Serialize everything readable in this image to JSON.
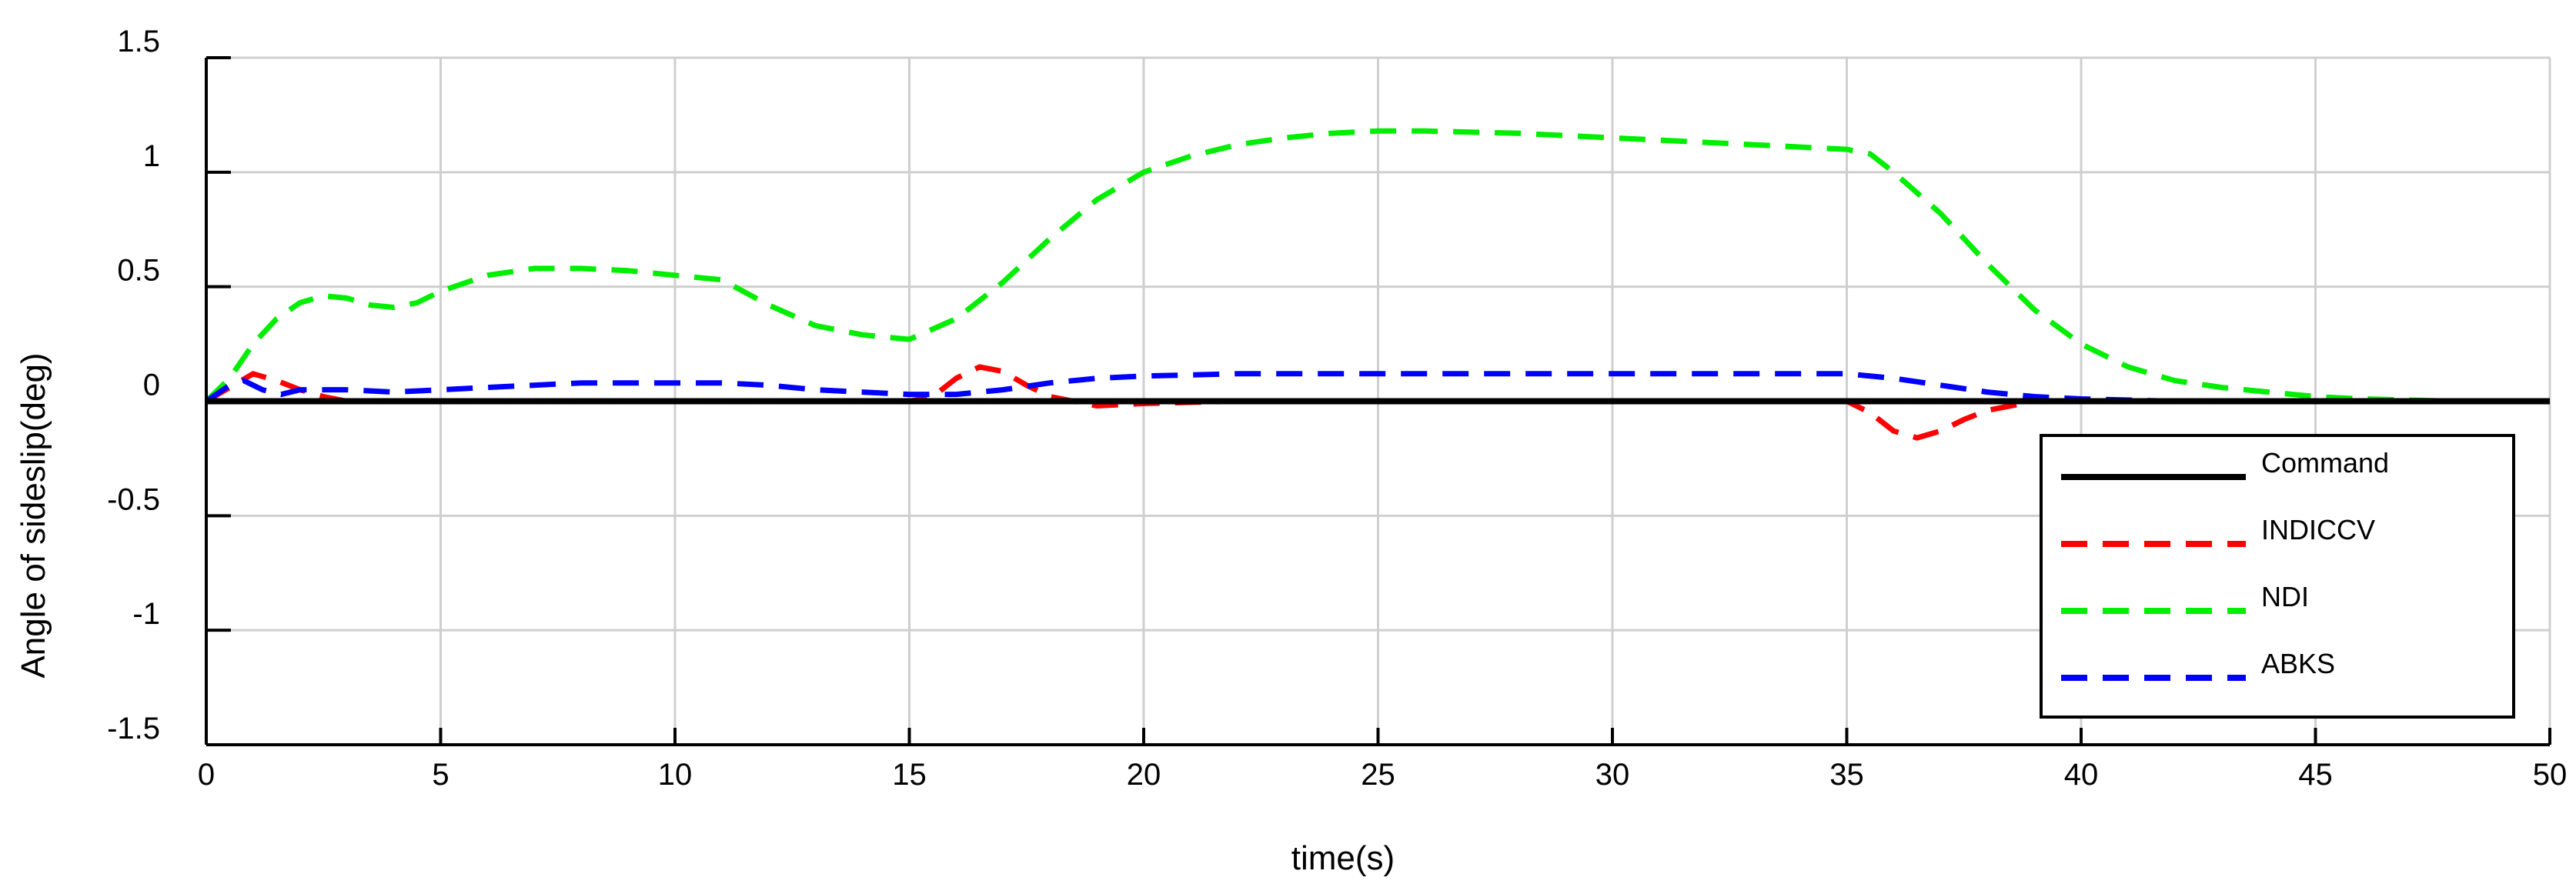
{
  "chart_data": {
    "type": "line",
    "title": "",
    "xlabel": "time(s)",
    "ylabel": "Angle of sideslip(deg)",
    "xlim": [
      0,
      50
    ],
    "ylim": [
      -1.5,
      1.5
    ],
    "xticks": [
      0,
      5,
      10,
      15,
      20,
      25,
      30,
      35,
      40,
      45,
      50
    ],
    "yticks": [
      -1.5,
      -1,
      -0.5,
      0,
      0.5,
      1,
      1.5
    ],
    "xtick_labels": [
      "0",
      "5",
      "10",
      "15",
      "20",
      "25",
      "30",
      "35",
      "40",
      "45",
      "50"
    ],
    "ytick_labels": [
      "-1.5",
      "-1",
      "-0.5",
      "0",
      "0.5",
      "1",
      "1.5"
    ],
    "grid": true,
    "legend_position": "bottom-right",
    "series": [
      {
        "name": "Command",
        "color": "#000000",
        "style": "solid",
        "x": [
          0,
          50
        ],
        "y": [
          0,
          0
        ]
      },
      {
        "name": "INDICCV",
        "color": "#ff0000",
        "style": "dashed",
        "x": [
          0,
          0.5,
          1,
          1.5,
          2,
          2.5,
          3,
          4,
          5,
          8,
          10,
          12,
          14,
          15,
          15.5,
          16,
          16.5,
          17,
          17.5,
          18,
          19,
          20,
          22,
          25,
          30,
          35,
          35.5,
          36,
          36.5,
          37,
          37.5,
          38,
          39,
          40,
          45,
          50
        ],
        "y": [
          0,
          0.06,
          0.12,
          0.09,
          0.05,
          0.02,
          0,
          0,
          0,
          0,
          0,
          0,
          0,
          0,
          0.02,
          0.1,
          0.15,
          0.13,
          0.07,
          0.02,
          -0.02,
          -0.01,
          0,
          0,
          0,
          0,
          -0.05,
          -0.13,
          -0.16,
          -0.13,
          -0.08,
          -0.04,
          0,
          0,
          0,
          0
        ]
      },
      {
        "name": "NDI",
        "color": "#00ee00",
        "style": "dashed",
        "x": [
          0,
          0.5,
          1,
          1.5,
          2,
          2.5,
          3,
          3.5,
          4,
          4.5,
          5,
          6,
          7,
          8,
          9,
          10,
          11,
          12,
          13,
          14,
          15,
          16,
          17,
          18,
          19,
          20,
          21,
          22,
          23,
          24,
          25,
          26,
          28,
          30,
          32,
          34,
          35,
          35.5,
          36,
          37,
          38,
          39,
          40,
          41,
          42,
          43,
          44,
          45,
          46,
          47,
          48,
          49,
          50
        ],
        "y": [
          0,
          0.1,
          0.25,
          0.36,
          0.43,
          0.46,
          0.45,
          0.42,
          0.41,
          0.43,
          0.48,
          0.55,
          0.58,
          0.58,
          0.57,
          0.55,
          0.53,
          0.42,
          0.33,
          0.29,
          0.27,
          0.36,
          0.52,
          0.71,
          0.88,
          1.0,
          1.07,
          1.12,
          1.15,
          1.17,
          1.18,
          1.18,
          1.17,
          1.15,
          1.13,
          1.11,
          1.1,
          1.08,
          1.0,
          0.82,
          0.6,
          0.4,
          0.25,
          0.15,
          0.09,
          0.06,
          0.04,
          0.02,
          0.01,
          0.005,
          0,
          0,
          0
        ]
      },
      {
        "name": "ABKS",
        "color": "#0000ff",
        "style": "dashed",
        "x": [
          0,
          0.5,
          0.8,
          1.2,
          1.6,
          2,
          3,
          4,
          5,
          6,
          8,
          10,
          11,
          12,
          13,
          14,
          15,
          16,
          17,
          18,
          19,
          20,
          22,
          25,
          30,
          35,
          36,
          37,
          38,
          39,
          40,
          42,
          45,
          50
        ],
        "y": [
          0,
          0.07,
          0.09,
          0.05,
          0.03,
          0.05,
          0.05,
          0.04,
          0.05,
          0.06,
          0.08,
          0.08,
          0.08,
          0.07,
          0.05,
          0.04,
          0.03,
          0.03,
          0.05,
          0.08,
          0.1,
          0.11,
          0.12,
          0.12,
          0.12,
          0.12,
          0.1,
          0.07,
          0.04,
          0.02,
          0.01,
          0,
          0,
          0
        ]
      }
    ]
  }
}
